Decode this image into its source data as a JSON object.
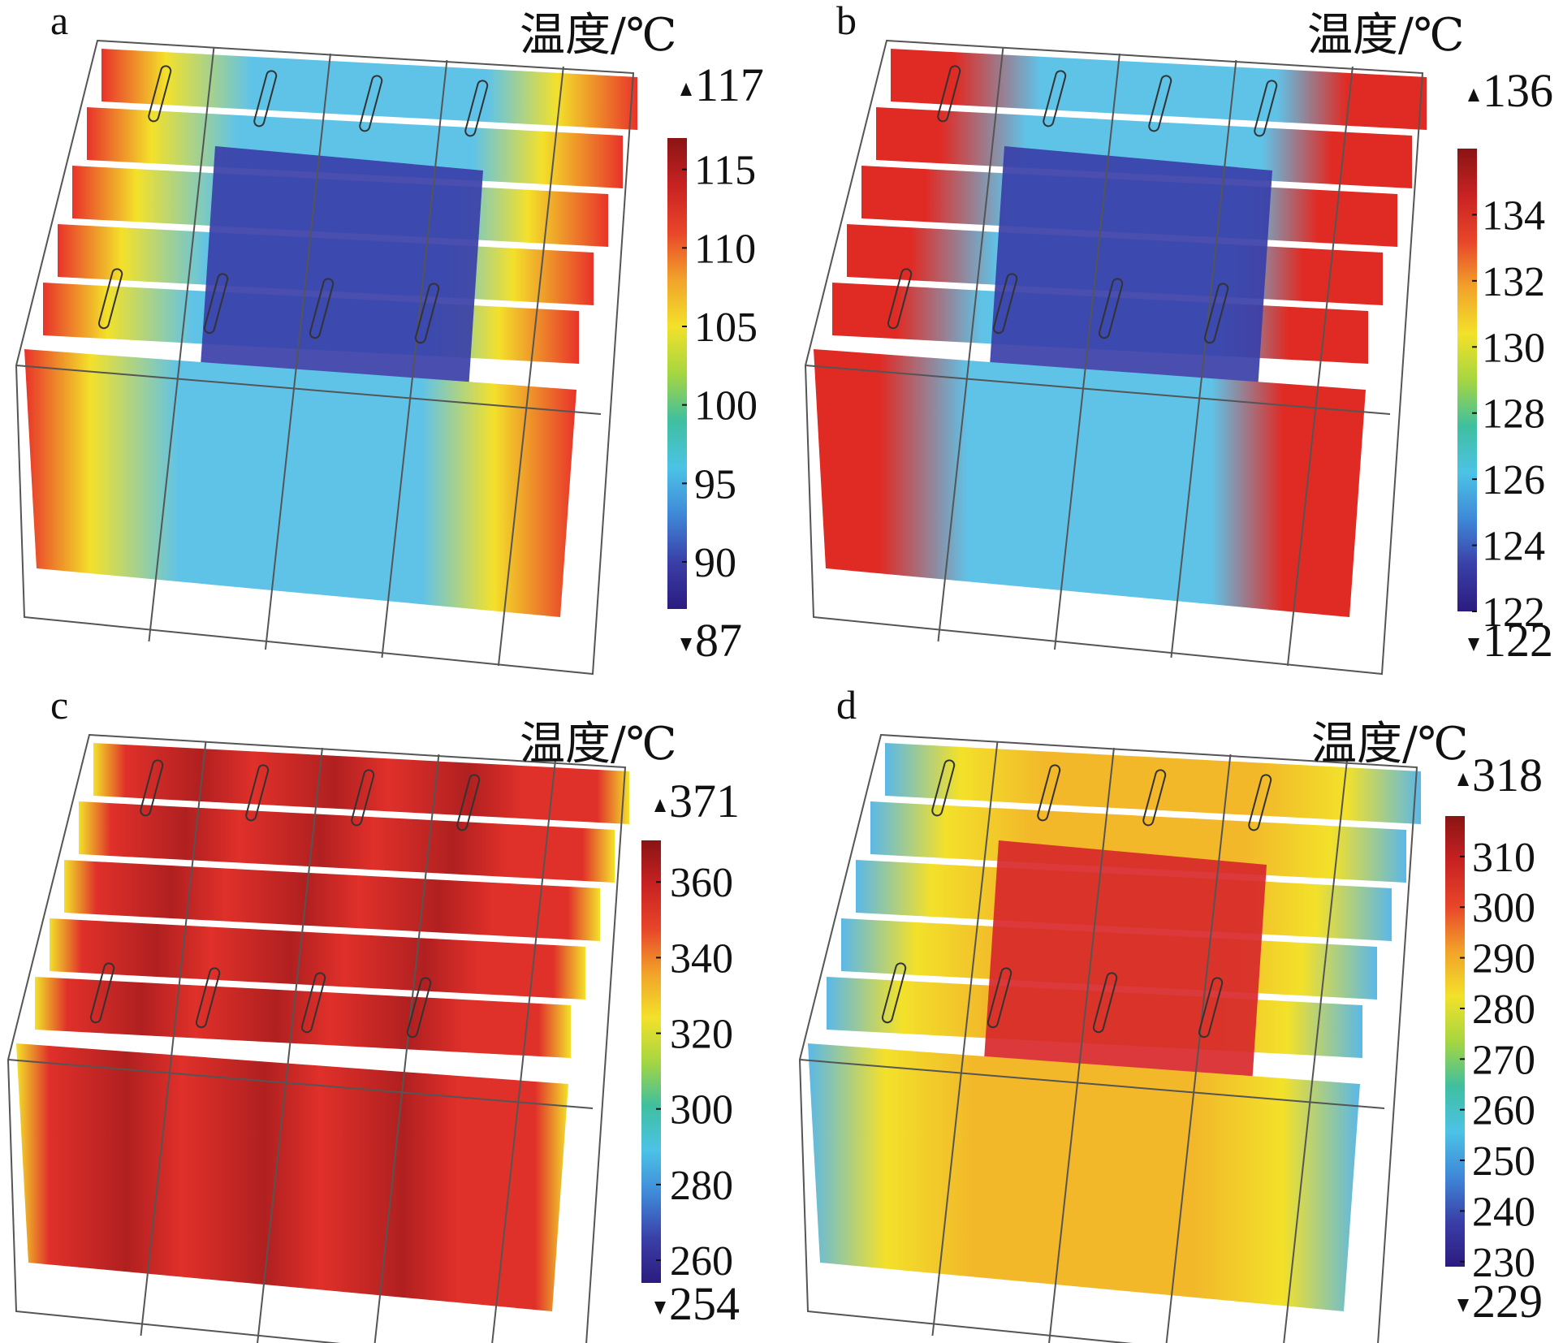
{
  "panels": [
    {
      "letter": "a",
      "legend_title": "温度/℃",
      "max_label": "117",
      "min_label": "87",
      "range": [
        87,
        117
      ],
      "ticks": [
        "115",
        "110",
        "105",
        "100",
        "95",
        "90"
      ],
      "tick_values": [
        115,
        110,
        105,
        100,
        95,
        90
      ],
      "pattern": "center-cool",
      "colors": {
        "center": "#3a3fa8",
        "mid": "#5fc3e8",
        "edge": "#e8332a",
        "edge_inner": "#f3e12a"
      }
    },
    {
      "letter": "b",
      "legend_title": "温度/℃",
      "max_label": "136",
      "min_label": "122",
      "range": [
        122,
        136
      ],
      "ticks": [
        "134",
        "132",
        "130",
        "128",
        "126",
        "124",
        "122"
      ],
      "tick_values": [
        134,
        132,
        130,
        128,
        126,
        124,
        122
      ],
      "pattern": "center-cool",
      "colors": {
        "center": "#3a3fa8",
        "mid": "#5fc3e8",
        "edge": "#e02b24",
        "edge_inner": "#e02b24"
      }
    },
    {
      "letter": "c",
      "legend_title": "温度/℃",
      "max_label": "371",
      "min_label": "254",
      "range": [
        254,
        371
      ],
      "ticks": [
        "360",
        "340",
        "320",
        "300",
        "280",
        "260"
      ],
      "tick_values": [
        360,
        340,
        320,
        300,
        280,
        260
      ],
      "pattern": "uniform-hot",
      "colors": {
        "center": "#b02020",
        "mid": "#e0302a",
        "edge": "#f3e12a",
        "edge_inner": "#e0302a"
      }
    },
    {
      "letter": "d",
      "legend_title": "温度/℃",
      "max_label": "318",
      "min_label": "229",
      "range": [
        229,
        318
      ],
      "ticks": [
        "310",
        "300",
        "290",
        "280",
        "270",
        "260",
        "250",
        "240",
        "230"
      ],
      "tick_values": [
        310,
        300,
        290,
        280,
        270,
        260,
        250,
        240,
        230
      ],
      "pattern": "center-hot",
      "colors": {
        "center": "#d8282a",
        "mid": "#f2b82a",
        "edge": "#5ab8e8",
        "edge_inner": "#f3e12a"
      }
    }
  ],
  "colormap": [
    "#2b1b7f",
    "#3a3fa8",
    "#3f88d8",
    "#4cc3e6",
    "#3fbfa0",
    "#a6d640",
    "#f3e12a",
    "#f2a22a",
    "#e8452a",
    "#c82222",
    "#8a1414"
  ]
}
